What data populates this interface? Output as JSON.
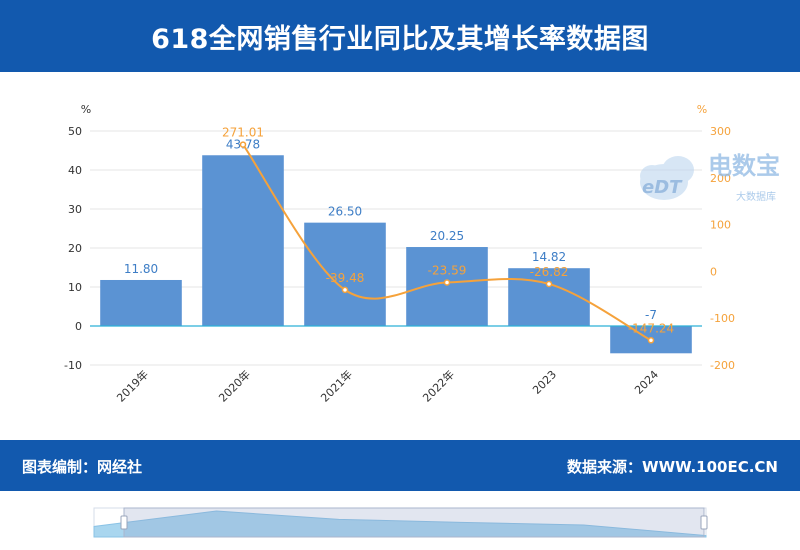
{
  "header": {
    "title": "618全网销售行业同比及其增长率数据图"
  },
  "watermark": {
    "brand": "电数宝",
    "sub": "大数据库",
    "logo_text": "eDT"
  },
  "footer": {
    "editor": "图表编制：网经社",
    "source": "数据来源：WWW.100EC.CN"
  },
  "colors": {
    "bar": "#5b93d3",
    "line": "#f5a23b",
    "header": "#1259ae",
    "zero_line": "#2cb0d8",
    "bar_label": "#3e7ec6"
  },
  "chart_data": {
    "type": "bar",
    "categories": [
      "2019年",
      "2020年",
      "2021年",
      "2022年",
      "2023",
      "2024"
    ],
    "series": [
      {
        "values": [
          11.8,
          43.78,
          26.5,
          20.25,
          14.82,
          -7
        ],
        "axis": "left",
        "kind": "bar",
        "labels": [
          "11.80",
          "43.78",
          "26.50",
          "20.25",
          "14.82",
          "-7"
        ]
      },
      {
        "values": [
          null,
          271.01,
          -39.48,
          -23.59,
          -26.82,
          -147.24
        ],
        "axis": "right",
        "kind": "line",
        "labels": [
          "",
          "271.01",
          "-39.48",
          "-23.59",
          "-26.82",
          "-147.24"
        ]
      }
    ],
    "y_left": {
      "label": "%",
      "min": -10,
      "max": 50,
      "ticks": [
        -10,
        0,
        10,
        20,
        30,
        40,
        50
      ]
    },
    "y_right": {
      "label": "%",
      "min": -200,
      "max": 300,
      "ticks": [
        -200,
        -100,
        0,
        100,
        200,
        300
      ]
    },
    "grid": true
  }
}
